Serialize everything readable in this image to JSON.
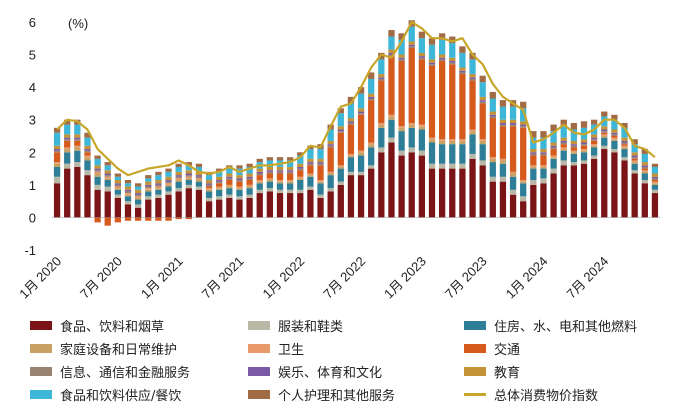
{
  "chart_data": {
    "type": "bar",
    "stacked": true,
    "unit_label": "(%)",
    "y_ticks": [
      "6",
      "5",
      "4",
      "3",
      "2",
      "1",
      "0",
      "-1"
    ],
    "ylim": [
      -1,
      6
    ],
    "x_tick_labels": [
      "1月 2020",
      "7月 2020",
      "1月 2021",
      "7月 2021",
      "1月 2022",
      "7月 2022",
      "1月 2023",
      "7月 2023",
      "1月 2024",
      "7月 2024"
    ],
    "categories": [
      "2020-01",
      "2020-02",
      "2020-03",
      "2020-04",
      "2020-05",
      "2020-06",
      "2020-07",
      "2020-08",
      "2020-09",
      "2020-10",
      "2020-11",
      "2020-12",
      "2021-01",
      "2021-02",
      "2021-03",
      "2021-04",
      "2021-05",
      "2021-06",
      "2021-07",
      "2021-08",
      "2021-09",
      "2021-10",
      "2021-11",
      "2021-12",
      "2022-01",
      "2022-02",
      "2022-03",
      "2022-04",
      "2022-05",
      "2022-06",
      "2022-07",
      "2022-08",
      "2022-09",
      "2022-10",
      "2022-11",
      "2022-12",
      "2023-01",
      "2023-02",
      "2023-03",
      "2023-04",
      "2023-05",
      "2023-06",
      "2023-07",
      "2023-08",
      "2023-09",
      "2023-10",
      "2023-11",
      "2023-12",
      "2024-01",
      "2024-02",
      "2024-03",
      "2024-04",
      "2024-05",
      "2024-06",
      "2024-07",
      "2024-08",
      "2024-09",
      "2024-10",
      "2024-11",
      "2024-12"
    ],
    "series": [
      {
        "name": "食品、饮料和烟草",
        "color": "#7B1416",
        "values": [
          1.05,
          1.5,
          1.55,
          1.3,
          0.85,
          0.8,
          0.6,
          0.4,
          0.3,
          0.55,
          0.6,
          0.7,
          0.8,
          0.9,
          0.85,
          0.5,
          0.55,
          0.6,
          0.55,
          0.6,
          0.75,
          0.8,
          0.75,
          0.75,
          0.75,
          0.85,
          0.6,
          0.8,
          1.0,
          1.3,
          1.3,
          1.5,
          2.0,
          2.3,
          1.9,
          2.0,
          1.9,
          1.5,
          1.5,
          1.5,
          1.5,
          1.8,
          1.6,
          1.1,
          1.1,
          0.7,
          0.5,
          1.0,
          1.05,
          1.35,
          1.6,
          1.6,
          1.65,
          1.8,
          2.1,
          2.0,
          1.75,
          1.35,
          1.05,
          0.75
        ]
      },
      {
        "name": "服装和鞋类",
        "color": "#B9B8A6",
        "values": [
          0.2,
          0.15,
          0.15,
          0.15,
          0.15,
          0.15,
          0.1,
          0.1,
          0.1,
          0.1,
          0.1,
          0.1,
          0.1,
          0.1,
          0.1,
          0.1,
          0.1,
          0.1,
          0.1,
          0.1,
          0.1,
          0.1,
          0.1,
          0.1,
          0.1,
          0.1,
          0.1,
          0.1,
          0.1,
          0.1,
          0.1,
          0.1,
          0.15,
          0.15,
          0.15,
          0.15,
          0.15,
          0.15,
          0.15,
          0.15,
          0.15,
          0.15,
          0.15,
          0.15,
          0.15,
          0.15,
          0.15,
          0.15,
          0.15,
          0.15,
          0.15,
          0.1,
          0.1,
          0.1,
          0.1,
          0.1,
          0.1,
          0.1,
          0.1,
          0.1
        ]
      },
      {
        "name": "住房、水、电和其他燃料",
        "color": "#2E7E98",
        "values": [
          0.3,
          0.35,
          0.35,
          0.3,
          0.25,
          0.2,
          0.15,
          0.15,
          0.15,
          0.15,
          0.15,
          0.15,
          0.2,
          0.15,
          0.15,
          0.2,
          0.2,
          0.2,
          0.2,
          0.2,
          0.2,
          0.2,
          0.2,
          0.2,
          0.3,
          0.3,
          0.35,
          0.4,
          0.4,
          0.45,
          0.5,
          0.55,
          0.6,
          0.55,
          0.6,
          0.6,
          0.65,
          0.65,
          0.6,
          0.6,
          0.6,
          0.6,
          0.5,
          0.45,
          0.4,
          0.4,
          0.4,
          0.35,
          0.3,
          0.3,
          0.3,
          0.25,
          0.25,
          0.25,
          0.25,
          0.25,
          0.25,
          0.2,
          0.2,
          0.15
        ]
      },
      {
        "name": "家庭设备和日常维护",
        "color": "#C7A264",
        "values": [
          0.1,
          0.1,
          0.1,
          0.1,
          0.1,
          0.05,
          0.05,
          0.05,
          0.05,
          0.05,
          0.05,
          0.05,
          0.05,
          0.05,
          0.05,
          0.05,
          0.05,
          0.05,
          0.05,
          0.05,
          0.05,
          0.05,
          0.05,
          0.05,
          0.05,
          0.05,
          0.05,
          0.05,
          0.05,
          0.05,
          0.1,
          0.1,
          0.1,
          0.1,
          0.1,
          0.1,
          0.1,
          0.1,
          0.1,
          0.1,
          0.1,
          0.1,
          0.1,
          0.1,
          0.1,
          0.1,
          0.05,
          0.05,
          0.05,
          0.05,
          0.05,
          0.05,
          0.05,
          0.05,
          0.05,
          0.05,
          0.05,
          0.05,
          0.05,
          0.05
        ]
      },
      {
        "name": "卫生",
        "color": "#E89A6A",
        "values": [
          0.05,
          0.05,
          0.05,
          0.05,
          0.05,
          0.05,
          0.05,
          0.05,
          0.05,
          0.05,
          0.05,
          0.05,
          0.05,
          0.05,
          0.05,
          0.05,
          0.05,
          0.05,
          0.05,
          0.05,
          0.05,
          0.05,
          0.05,
          0.05,
          0.05,
          0.05,
          0.05,
          0.05,
          0.05,
          0.05,
          0.05,
          0.05,
          0.05,
          0.05,
          0.05,
          0.05,
          0.05,
          0.05,
          0.05,
          0.05,
          0.05,
          0.05,
          0.05,
          0.05,
          0.05,
          0.05,
          0.05,
          0.05,
          0.05,
          0.05,
          0.05,
          0.05,
          0.05,
          0.05,
          0.05,
          0.05,
          0.05,
          0.05,
          0.05,
          0.05
        ]
      },
      {
        "name": "交通",
        "color": "#D55A1C",
        "values": [
          0.3,
          0.2,
          0.15,
          0.1,
          -0.15,
          -0.25,
          -0.15,
          -0.1,
          -0.1,
          -0.1,
          -0.1,
          -0.1,
          -0.05,
          -0.05,
          0.0,
          0.05,
          0.1,
          0.15,
          0.15,
          0.15,
          0.15,
          0.15,
          0.2,
          0.2,
          0.2,
          0.25,
          0.45,
          0.75,
          1.0,
          0.9,
          1.1,
          1.3,
          1.3,
          1.8,
          2.0,
          2.3,
          2.0,
          2.2,
          2.4,
          2.3,
          2.0,
          1.5,
          1.1,
          1.2,
          1.0,
          1.4,
          1.6,
          0.3,
          0.3,
          0.2,
          0.1,
          0.1,
          0.1,
          0.1,
          0.05,
          0.05,
          0.05,
          0.05,
          0.05,
          0.05
        ]
      },
      {
        "name": "信息、通信和金融服务",
        "color": "#9A8270",
        "values": [
          0.05,
          0.05,
          0.05,
          0.05,
          0.05,
          0.05,
          0.05,
          0.05,
          0.05,
          0.05,
          0.05,
          0.05,
          0.05,
          0.05,
          0.05,
          0.05,
          0.05,
          0.05,
          0.05,
          0.05,
          0.05,
          0.05,
          0.05,
          0.05,
          0.05,
          0.05,
          0.05,
          0.05,
          0.05,
          0.05,
          0.05,
          0.05,
          0.05,
          0.05,
          0.05,
          0.05,
          0.05,
          0.05,
          0.05,
          0.05,
          0.05,
          0.05,
          0.05,
          0.05,
          0.05,
          0.05,
          0.05,
          0.05,
          0.05,
          0.05,
          0.05,
          0.05,
          0.05,
          0.05,
          0.05,
          0.05,
          0.05,
          0.05,
          0.05,
          0.05
        ]
      },
      {
        "name": "娱乐、体育和文化",
        "color": "#7A5AA6",
        "values": [
          0.05,
          0.05,
          0.05,
          0.05,
          0.05,
          0.05,
          0.05,
          0.05,
          0.05,
          0.05,
          0.05,
          0.05,
          0.05,
          0.05,
          0.05,
          0.05,
          0.05,
          0.05,
          0.05,
          0.05,
          0.05,
          0.05,
          0.05,
          0.05,
          0.05,
          0.05,
          0.05,
          0.05,
          0.05,
          0.05,
          0.05,
          0.05,
          0.05,
          0.05,
          0.05,
          0.05,
          0.05,
          0.05,
          0.05,
          0.05,
          0.05,
          0.05,
          0.05,
          0.05,
          0.05,
          0.05,
          0.05,
          0.05,
          0.05,
          0.05,
          0.05,
          0.05,
          0.05,
          0.05,
          0.05,
          0.05,
          0.05,
          0.05,
          0.05,
          0.05
        ]
      },
      {
        "name": "教育",
        "color": "#C49237",
        "values": [
          0.1,
          0.1,
          0.1,
          0.1,
          0.1,
          0.1,
          0.1,
          0.1,
          0.1,
          0.1,
          0.1,
          0.1,
          0.1,
          0.1,
          0.1,
          0.1,
          0.1,
          0.1,
          0.1,
          0.1,
          0.1,
          0.1,
          0.1,
          0.1,
          0.1,
          0.1,
          0.1,
          0.1,
          0.1,
          0.1,
          0.1,
          0.1,
          0.1,
          0.1,
          0.1,
          0.1,
          0.1,
          0.1,
          0.1,
          0.1,
          0.1,
          0.1,
          0.1,
          0.1,
          0.1,
          0.1,
          0.1,
          0.1,
          0.1,
          0.1,
          0.1,
          0.1,
          0.1,
          0.1,
          0.1,
          0.1,
          0.1,
          0.1,
          0.1,
          0.1
        ]
      },
      {
        "name": "食品和饮料供应/餐饮",
        "color": "#3DB6D8",
        "values": [
          0.4,
          0.3,
          0.3,
          0.25,
          0.2,
          0.15,
          0.1,
          0.1,
          0.1,
          0.1,
          0.15,
          0.15,
          0.15,
          0.15,
          0.15,
          0.15,
          0.15,
          0.15,
          0.2,
          0.2,
          0.2,
          0.2,
          0.2,
          0.2,
          0.25,
          0.3,
          0.3,
          0.35,
          0.4,
          0.45,
          0.45,
          0.45,
          0.45,
          0.4,
          0.45,
          0.45,
          0.45,
          0.45,
          0.45,
          0.45,
          0.45,
          0.45,
          0.45,
          0.4,
          0.4,
          0.4,
          0.4,
          0.35,
          0.35,
          0.35,
          0.35,
          0.35,
          0.35,
          0.3,
          0.3,
          0.3,
          0.3,
          0.25,
          0.25,
          0.2
        ]
      },
      {
        "name": "个人护理和其他服务",
        "color": "#A06B45",
        "values": [
          0.15,
          0.15,
          0.15,
          0.15,
          0.1,
          0.1,
          0.1,
          0.1,
          0.1,
          0.1,
          0.1,
          0.1,
          0.1,
          0.1,
          0.1,
          0.1,
          0.1,
          0.1,
          0.1,
          0.1,
          0.1,
          0.1,
          0.1,
          0.1,
          0.1,
          0.1,
          0.15,
          0.15,
          0.15,
          0.2,
          0.2,
          0.2,
          0.2,
          0.2,
          0.2,
          0.2,
          0.2,
          0.2,
          0.2,
          0.2,
          0.2,
          0.2,
          0.2,
          0.2,
          0.2,
          0.2,
          0.2,
          0.2,
          0.2,
          0.2,
          0.2,
          0.2,
          0.2,
          0.15,
          0.15,
          0.15,
          0.15,
          0.15,
          0.15,
          0.1
        ]
      }
    ],
    "total_series": {
      "name": "总体消费物价指数",
      "color": "#C8A62A",
      "values": [
        2.7,
        3.0,
        2.95,
        2.7,
        2.1,
        1.8,
        1.5,
        1.3,
        1.4,
        1.5,
        1.55,
        1.6,
        1.75,
        1.6,
        1.4,
        1.35,
        1.4,
        1.55,
        1.4,
        1.5,
        1.6,
        1.6,
        1.65,
        1.7,
        1.85,
        2.2,
        2.15,
        2.8,
        3.4,
        3.5,
        4.0,
        4.6,
        5.0,
        4.9,
        5.4,
        6.0,
        5.8,
        5.5,
        5.5,
        5.4,
        5.5,
        5.0,
        4.7,
        4.1,
        3.7,
        3.5,
        3.3,
        2.3,
        2.4,
        2.6,
        2.85,
        2.6,
        2.55,
        2.7,
        3.0,
        3.0,
        2.75,
        2.2,
        2.1,
        1.85
      ]
    }
  },
  "legend": {
    "row1": [
      "食品、饮料和烟草",
      "服装和鞋类",
      "住房、水、电和其他燃料"
    ],
    "row2": [
      "家庭设备和日常维护",
      "卫生",
      "交通"
    ],
    "row3": [
      "信息、通信和金融服务",
      "娱乐、体育和文化",
      "教育"
    ],
    "row4": [
      "食品和饮料供应/餐饮",
      "个人护理和其他服务",
      "总体消费物价指数"
    ]
  }
}
